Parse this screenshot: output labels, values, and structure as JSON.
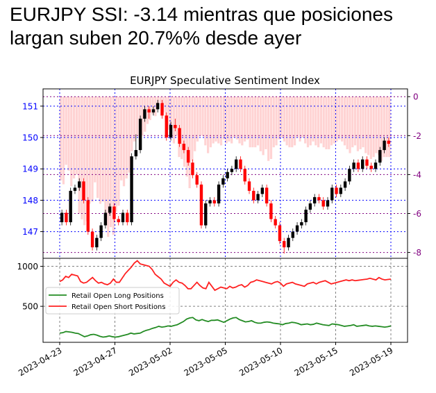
{
  "headline": "EURJPY SSI: -3.14 mientras que posiciones largan suben 20.7%% desde ayer",
  "chart_data": [
    {
      "type": "candlestick+bar",
      "title": "EURJPY Speculative Sentiment Index",
      "left_axis": {
        "ylim": [
          146.15,
          151.55
        ],
        "ticks": [
          147,
          148,
          149,
          150,
          151
        ],
        "tick_color": "#0000ff"
      },
      "right_axis": {
        "ylim": [
          -8.3,
          0.4
        ],
        "ticks": [
          0,
          -2,
          -4,
          -6,
          -8
        ],
        "tick_color": "#800080"
      },
      "grid": {
        "vertical": "blue dotted",
        "horizontal_left": "blue dotted",
        "horizontal_right": "purple dotted"
      },
      "colors": {
        "up_candle": "#000000",
        "down_candle": "#ff0000",
        "ssi_bars": "#ffb6b6"
      },
      "ssi_bars": [
        -4.3,
        -4.5,
        -3.5,
        -3.8,
        -4.6,
        -4.2,
        -4.0,
        -6.0,
        -6.3,
        -6.6,
        -6.4,
        -5.5,
        -5.4,
        -4.4,
        -5.2,
        -5.5,
        -5.4,
        -6.6,
        -7.2,
        -6.7,
        -7.1,
        -5.9,
        -5.6,
        -4.3,
        -4.6,
        -4.2,
        -3.9,
        -2.8,
        -2.3,
        -2.0,
        -2.1,
        -2.0,
        -1.8,
        -1.4,
        -1.2,
        -0.9,
        -1.0,
        -0.4,
        -0.3,
        -0.8,
        -1.3,
        -1.7,
        -2.1,
        -2.4,
        -2.0,
        -3.1,
        -3.2,
        -3.6,
        -4.1,
        -4.7,
        -3.3,
        -2.8,
        -2.3,
        -2.0,
        -2.0,
        -2.5,
        -2.9,
        -2.6,
        -2.4,
        -2.3,
        -2.4,
        -2.5,
        -2.2,
        -2.4,
        -2.3,
        -2.4,
        -2.1,
        -2.2,
        -2.4,
        -2.5,
        -2.3,
        -2.2,
        -2.6,
        -2.6,
        -2.6,
        -2.5,
        -2.8,
        -3.0,
        -2.7,
        -3.3,
        -3.2,
        -2.6,
        -2.5,
        -2.2,
        -2.1,
        -2.3,
        -2.5,
        -2.6,
        -2.6,
        -2.5,
        -2.1,
        -2.3,
        -2.1,
        -2.4,
        -2.6,
        -2.5,
        -2.3,
        -2.5,
        -2.6,
        -2.4,
        -2.6,
        -2.7,
        -2.7,
        -2.5,
        -2.4,
        -2.3,
        -2.2,
        -2.3,
        -2.5,
        -2.7,
        -2.9,
        -2.6,
        -2.5,
        -2.8,
        -2.7,
        -2.6,
        -2.9,
        -3.0,
        -3.2,
        -3.1,
        -2.9,
        -3.0,
        -3.3,
        -3.1,
        -3.1,
        -3.1
      ],
      "candles": [
        [
          147.3,
          147.6,
          147.2,
          147.7
        ],
        [
          147.6,
          147.3,
          147.2,
          147.7
        ],
        [
          147.3,
          148.3,
          147.2,
          148.4
        ],
        [
          148.3,
          148.4,
          148.2,
          148.5
        ],
        [
          148.4,
          148.6,
          148.3,
          148.7
        ],
        [
          148.6,
          148.0,
          147.9,
          148.7
        ],
        [
          148.0,
          147.0,
          146.9,
          148.1
        ],
        [
          147.0,
          146.5,
          146.4,
          147.1
        ],
        [
          146.5,
          146.8,
          146.4,
          146.9
        ],
        [
          146.8,
          147.2,
          146.7,
          147.3
        ],
        [
          147.2,
          147.6,
          147.1,
          147.7
        ],
        [
          147.6,
          147.8,
          147.5,
          147.9
        ],
        [
          147.8,
          147.4,
          147.3,
          147.9
        ],
        [
          147.4,
          147.3,
          147.2,
          147.5
        ],
        [
          147.3,
          147.6,
          147.2,
          147.7
        ],
        [
          147.6,
          147.3,
          147.2,
          147.7
        ],
        [
          147.3,
          149.4,
          147.2,
          149.5
        ],
        [
          149.4,
          149.6,
          149.3,
          150.1
        ],
        [
          149.6,
          150.6,
          149.5,
          150.7
        ],
        [
          150.6,
          150.9,
          150.5,
          151.0
        ],
        [
          150.9,
          150.8,
          150.6,
          151.0
        ],
        [
          150.8,
          150.9,
          150.7,
          151.0
        ],
        [
          150.9,
          151.1,
          150.8,
          151.2
        ],
        [
          151.1,
          150.7,
          150.6,
          151.2
        ],
        [
          150.7,
          150.0,
          149.9,
          150.8
        ],
        [
          150.0,
          150.4,
          149.9,
          150.5
        ],
        [
          150.4,
          150.3,
          150.2,
          150.6
        ],
        [
          150.3,
          149.8,
          149.7,
          150.4
        ],
        [
          149.8,
          149.6,
          149.5,
          149.9
        ],
        [
          149.6,
          149.2,
          149.1,
          149.7
        ],
        [
          149.2,
          148.8,
          148.7,
          149.3
        ],
        [
          148.8,
          148.5,
          148.4,
          148.9
        ],
        [
          148.5,
          147.2,
          147.1,
          148.6
        ],
        [
          147.2,
          147.9,
          147.1,
          148.0
        ],
        [
          147.9,
          148.0,
          147.8,
          148.1
        ],
        [
          148.0,
          147.9,
          147.8,
          148.1
        ],
        [
          147.9,
          148.5,
          147.8,
          148.6
        ],
        [
          148.5,
          148.7,
          148.4,
          148.8
        ],
        [
          148.7,
          148.9,
          148.6,
          149.0
        ],
        [
          148.9,
          149.0,
          148.8,
          149.1
        ],
        [
          149.0,
          149.3,
          148.9,
          149.4
        ],
        [
          149.3,
          149.0,
          148.9,
          149.4
        ],
        [
          149.0,
          148.6,
          148.5,
          149.1
        ],
        [
          148.6,
          148.3,
          148.2,
          148.7
        ],
        [
          148.3,
          148.0,
          147.9,
          148.4
        ],
        [
          148.0,
          148.2,
          147.9,
          148.3
        ],
        [
          148.2,
          148.4,
          148.1,
          148.5
        ],
        [
          148.4,
          147.9,
          147.8,
          148.5
        ],
        [
          147.9,
          147.4,
          147.3,
          148.0
        ],
        [
          147.4,
          147.2,
          147.1,
          147.5
        ],
        [
          147.2,
          146.7,
          146.6,
          147.3
        ],
        [
          146.7,
          146.5,
          146.3,
          146.8
        ],
        [
          146.5,
          146.8,
          146.4,
          146.9
        ],
        [
          146.8,
          147.0,
          146.7,
          147.1
        ],
        [
          147.0,
          147.2,
          146.9,
          147.3
        ],
        [
          147.2,
          147.3,
          147.1,
          147.4
        ],
        [
          147.3,
          147.7,
          147.2,
          147.8
        ],
        [
          147.7,
          147.9,
          147.6,
          148.0
        ],
        [
          147.9,
          148.1,
          147.8,
          148.2
        ],
        [
          148.1,
          148.0,
          147.9,
          148.2
        ],
        [
          148.0,
          147.8,
          147.7,
          148.1
        ],
        [
          147.8,
          148.0,
          147.7,
          148.1
        ],
        [
          148.0,
          148.4,
          147.9,
          148.5
        ],
        [
          148.4,
          148.2,
          148.1,
          148.5
        ],
        [
          148.2,
          148.4,
          148.1,
          148.5
        ],
        [
          148.4,
          148.6,
          148.3,
          148.7
        ],
        [
          148.6,
          149.0,
          148.5,
          149.1
        ],
        [
          149.0,
          149.2,
          148.9,
          149.3
        ],
        [
          149.2,
          149.0,
          148.9,
          149.3
        ],
        [
          149.0,
          149.3,
          148.9,
          149.4
        ],
        [
          149.3,
          149.1,
          149.0,
          149.4
        ],
        [
          149.1,
          149.0,
          148.9,
          149.2
        ],
        [
          149.0,
          149.2,
          148.9,
          149.3
        ],
        [
          149.2,
          149.6,
          149.1,
          149.7
        ],
        [
          149.6,
          149.9,
          149.5,
          150.0
        ],
        [
          149.9,
          149.8,
          149.7,
          150.0
        ]
      ],
      "lower_panel": {
        "ylim": [
          50,
          1100
        ],
        "yticks": [
          500,
          1000
        ],
        "xticks": [
          "2023-04-23",
          "2023-04-27",
          "2023-05-02",
          "2023-05-05",
          "2023-05-10",
          "2023-05-15",
          "2023-05-19"
        ],
        "series": [
          {
            "name": "Retail Open Long Positions",
            "color": "#228b22",
            "values": [
              165,
              170,
              185,
              180,
              175,
              165,
              160,
              140,
              120,
              130,
              145,
              150,
              140,
              125,
              115,
              120,
              130,
              120,
              115,
              120,
              130,
              140,
              150,
              165,
              155,
              160,
              165,
              185,
              200,
              210,
              225,
              235,
              250,
              240,
              245,
              255,
              250,
              260,
              270,
              290,
              310,
              340,
              355,
              360,
              330,
              320,
              335,
              320,
              310,
              325,
              325,
              330,
              315,
              300,
              320,
              340,
              355,
              360,
              335,
              320,
              305,
              310,
              320,
              300,
              290,
              290,
              300,
              305,
              300,
              290,
              285,
              280,
              270,
              285,
              290,
              300,
              295,
              285,
              270,
              275,
              280,
              270,
              275,
              290,
              280,
              270,
              265,
              260,
              280,
              275,
              270,
              260,
              250,
              255,
              260,
              270,
              250,
              255,
              260,
              265,
              255,
              250,
              255,
              250,
              245,
              240,
              245,
              255
            ]
          },
          {
            "name": "Retail Open Short Positions",
            "color": "#ff2020",
            "values": [
              810,
              830,
              875,
              860,
              900,
              890,
              880,
              810,
              790,
              800,
              830,
              860,
              820,
              790,
              800,
              780,
              770,
              790,
              840,
              800,
              800,
              855,
              910,
              950,
              990,
              1040,
              1070,
              1030,
              1020,
              1010,
              1000,
              960,
              900,
              870,
              840,
              790,
              770,
              750,
              800,
              830,
              800,
              790,
              760,
              720,
              720,
              760,
              800,
              760,
              730,
              720,
              800,
              750,
              700,
              720,
              740,
              730,
              720,
              750,
              730,
              740,
              760,
              770,
              740,
              760,
              800,
              810,
              830,
              820,
              810,
              800,
              790,
              780,
              800,
              810,
              790,
              750,
              780,
              790,
              800,
              780,
              770,
              760,
              750,
              780,
              790,
              800,
              780,
              800,
              810,
              820,
              800,
              780,
              790,
              800,
              810,
              820,
              830,
              820,
              830,
              820,
              825,
              830,
              835,
              840,
              850,
              840,
              830,
              860,
              840,
              830,
              835,
              840
            ]
          }
        ]
      }
    }
  ]
}
